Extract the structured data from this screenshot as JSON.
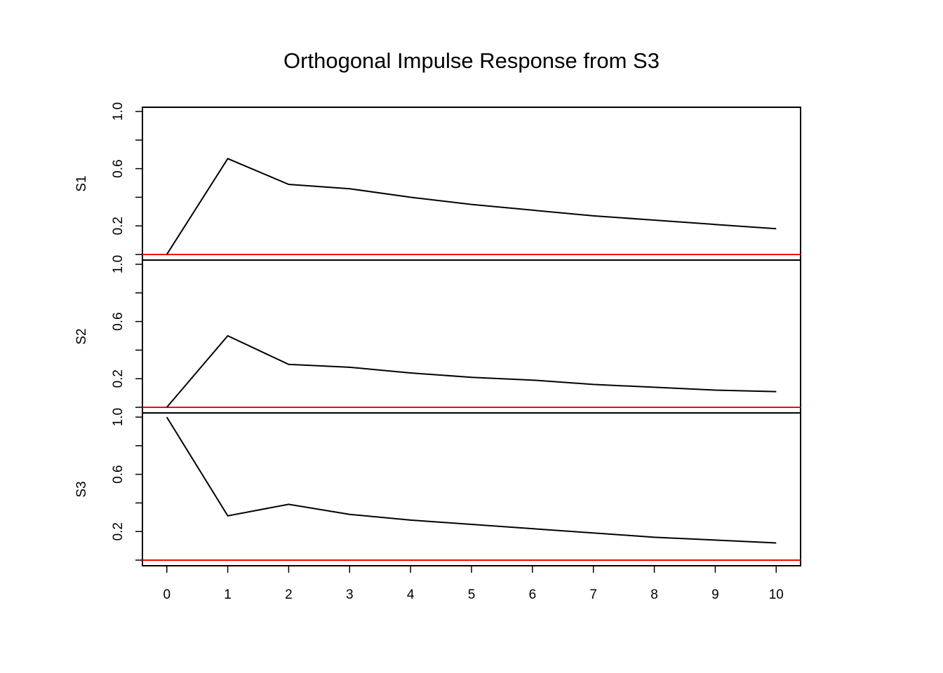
{
  "chart_data": {
    "type": "line",
    "title": "Orthogonal Impulse Response from S3",
    "x": [
      0,
      1,
      2,
      3,
      4,
      5,
      6,
      7,
      8,
      9,
      10
    ],
    "xlim": [
      -0.4,
      10.4
    ],
    "x_tick_labels": [
      "0",
      "1",
      "2",
      "3",
      "4",
      "5",
      "6",
      "7",
      "8",
      "9",
      "10"
    ],
    "panels": [
      {
        "ylabel": "S1",
        "ylim": [
          0.0,
          1.0
        ],
        "y_tick_labels": [
          "0.2",
          "0.6",
          "1.0"
        ],
        "values": [
          0.0,
          0.67,
          0.49,
          0.46,
          0.4,
          0.35,
          0.31,
          0.27,
          0.24,
          0.21,
          0.18
        ],
        "reference_line": 0.0
      },
      {
        "ylabel": "S2",
        "ylim": [
          0.0,
          1.0
        ],
        "y_tick_labels": [
          "0.2",
          "0.6",
          "1.0"
        ],
        "values": [
          0.0,
          0.5,
          0.3,
          0.28,
          0.24,
          0.21,
          0.19,
          0.16,
          0.14,
          0.12,
          0.11
        ],
        "reference_line": 0.0
      },
      {
        "ylabel": "S3",
        "ylim": [
          0.0,
          1.0
        ],
        "y_tick_labels": [
          "0.2",
          "0.6",
          "1.0"
        ],
        "values": [
          1.0,
          0.31,
          0.39,
          0.32,
          0.28,
          0.25,
          0.22,
          0.19,
          0.16,
          0.14,
          0.12
        ],
        "reference_line": 0.0
      }
    ],
    "colors": {
      "series": "#000000",
      "reference": "#ff0000",
      "frame": "#000000"
    },
    "grid": false,
    "legend": "none"
  }
}
